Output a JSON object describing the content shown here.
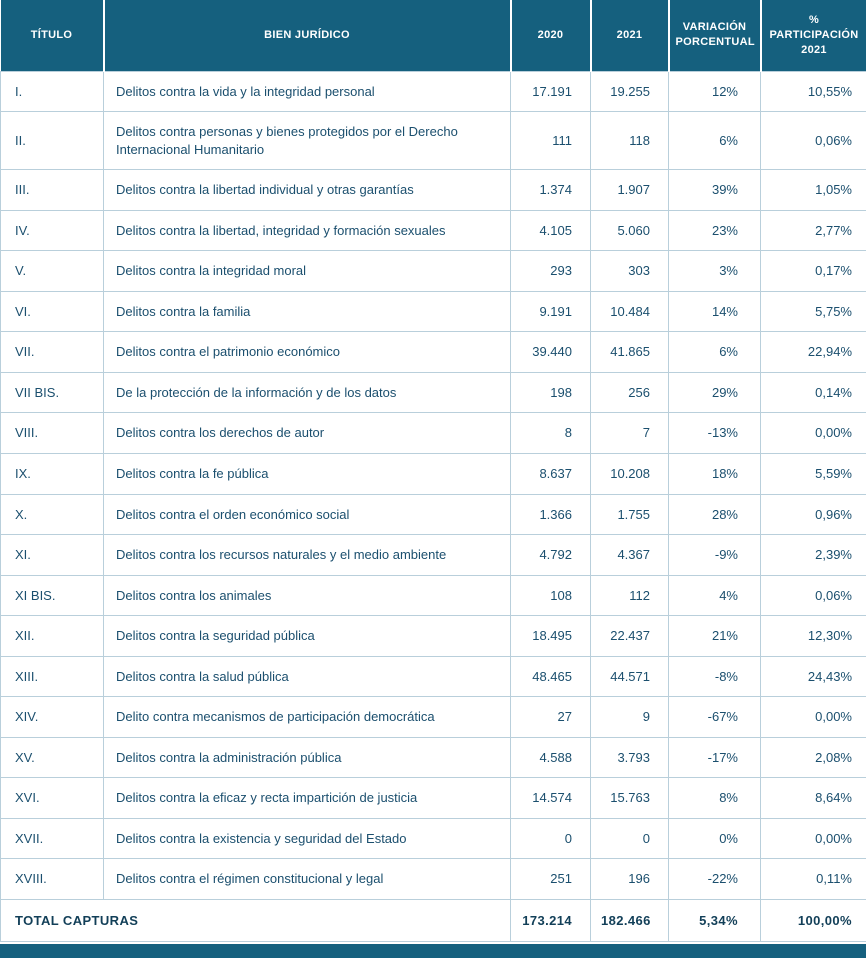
{
  "colors": {
    "header_bg": "#15607E",
    "border": "#B9CFDB",
    "body_text": "#1B4F6E",
    "header_text": "#FFFFFF"
  },
  "table": {
    "columns": [
      "TÍTULO",
      "BIEN JURÍDICO",
      "2020",
      "2021",
      "VARIACIÓN PORCENTUAL",
      "% PARTICIPACIÓN 2021"
    ],
    "rows": [
      {
        "titulo": "I.",
        "bien_juridico": "Delitos contra la vida y la integridad personal",
        "y2020": "17.191",
        "y2021": "19.255",
        "variacion": "12%",
        "participacion": "10,55%"
      },
      {
        "titulo": "II.",
        "bien_juridico": "Delitos contra personas y bienes protegidos por el Derecho Internacional Humanitario",
        "y2020": "111",
        "y2021": "118",
        "variacion": "6%",
        "participacion": "0,06%"
      },
      {
        "titulo": "III.",
        "bien_juridico": "Delitos contra la libertad individual y otras garantías",
        "y2020": "1.374",
        "y2021": "1.907",
        "variacion": "39%",
        "participacion": "1,05%"
      },
      {
        "titulo": "IV.",
        "bien_juridico": "Delitos contra la libertad, integridad y formación sexuales",
        "y2020": "4.105",
        "y2021": "5.060",
        "variacion": "23%",
        "participacion": "2,77%"
      },
      {
        "titulo": "V.",
        "bien_juridico": "Delitos contra la integridad moral",
        "y2020": "293",
        "y2021": "303",
        "variacion": "3%",
        "participacion": "0,17%"
      },
      {
        "titulo": "VI.",
        "bien_juridico": "Delitos contra la familia",
        "y2020": "9.191",
        "y2021": "10.484",
        "variacion": "14%",
        "participacion": "5,75%"
      },
      {
        "titulo": "VII.",
        "bien_juridico": "Delitos contra el patrimonio económico",
        "y2020": "39.440",
        "y2021": "41.865",
        "variacion": "6%",
        "participacion": "22,94%"
      },
      {
        "titulo": "VII BIS.",
        "bien_juridico": "De la protección de la información y de los datos",
        "y2020": "198",
        "y2021": "256",
        "variacion": "29%",
        "participacion": "0,14%"
      },
      {
        "titulo": "VIII.",
        "bien_juridico": "Delitos contra los derechos de autor",
        "y2020": "8",
        "y2021": "7",
        "variacion": "-13%",
        "participacion": "0,00%"
      },
      {
        "titulo": "IX.",
        "bien_juridico": "Delitos contra la fe pública",
        "y2020": "8.637",
        "y2021": "10.208",
        "variacion": "18%",
        "participacion": "5,59%"
      },
      {
        "titulo": "X.",
        "bien_juridico": "Delitos contra el orden económico social",
        "y2020": "1.366",
        "y2021": "1.755",
        "variacion": "28%",
        "participacion": "0,96%"
      },
      {
        "titulo": "XI.",
        "bien_juridico": "Delitos contra los recursos naturales y el medio ambiente",
        "y2020": "4.792",
        "y2021": "4.367",
        "variacion": "-9%",
        "participacion": "2,39%"
      },
      {
        "titulo": "XI BIS.",
        "bien_juridico": "Delitos contra los animales",
        "y2020": "108",
        "y2021": "112",
        "variacion": "4%",
        "participacion": "0,06%"
      },
      {
        "titulo": "XII.",
        "bien_juridico": "Delitos contra la seguridad pública",
        "y2020": "18.495",
        "y2021": "22.437",
        "variacion": "21%",
        "participacion": "12,30%"
      },
      {
        "titulo": "XIII.",
        "bien_juridico": "Delitos contra la salud pública",
        "y2020": "48.465",
        "y2021": "44.571",
        "variacion": "-8%",
        "participacion": "24,43%"
      },
      {
        "titulo": "XIV.",
        "bien_juridico": "Delito contra mecanismos de participación democrática",
        "y2020": "27",
        "y2021": "9",
        "variacion": "-67%",
        "participacion": "0,00%"
      },
      {
        "titulo": "XV.",
        "bien_juridico": "Delitos contra la administración pública",
        "y2020": "4.588",
        "y2021": "3.793",
        "variacion": "-17%",
        "participacion": "2,08%"
      },
      {
        "titulo": "XVI.",
        "bien_juridico": "Delitos contra la eficaz y recta impartición de justicia",
        "y2020": "14.574",
        "y2021": "15.763",
        "variacion": "8%",
        "participacion": "8,64%"
      },
      {
        "titulo": "XVII.",
        "bien_juridico": "Delitos contra la existencia y seguridad del Estado",
        "y2020": "0",
        "y2021": "0",
        "variacion": "0%",
        "participacion": "0,00%"
      },
      {
        "titulo": "XVIII.",
        "bien_juridico": "Delitos contra el régimen constitucional y legal",
        "y2020": "251",
        "y2021": "196",
        "variacion": "-22%",
        "participacion": "0,11%"
      }
    ],
    "total": {
      "label": "TOTAL CAPTURAS",
      "y2020": "173.214",
      "y2021": "182.466",
      "variacion": "5,34%",
      "participacion": "100,00%"
    }
  }
}
